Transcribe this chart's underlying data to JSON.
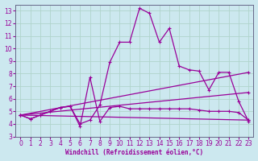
{
  "background_color": "#cce8ef",
  "line_color": "#990099",
  "grid_color": "#b0d4cc",
  "xlabel": "Windchill (Refroidissement éolien,°C)",
  "xlim": [
    -0.5,
    23.5
  ],
  "ylim": [
    3,
    13.5
  ],
  "xticks": [
    0,
    1,
    2,
    3,
    4,
    5,
    6,
    7,
    8,
    9,
    10,
    11,
    12,
    13,
    14,
    15,
    16,
    17,
    18,
    19,
    20,
    21,
    22,
    23
  ],
  "yticks": [
    3,
    4,
    5,
    6,
    7,
    8,
    9,
    10,
    11,
    12,
    13
  ],
  "series": [
    {
      "x": [
        0,
        1,
        2,
        3,
        4,
        5,
        6,
        7,
        8,
        9,
        10,
        11,
        12,
        13,
        14,
        15,
        16,
        17,
        18,
        19,
        20,
        21,
        22,
        23
      ],
      "y": [
        4.7,
        4.4,
        4.7,
        5.0,
        5.3,
        5.4,
        4.0,
        4.3,
        5.5,
        8.9,
        10.5,
        10.5,
        13.2,
        12.8,
        10.5,
        11.6,
        8.6,
        8.3,
        8.2,
        6.7,
        8.1,
        8.1,
        5.8,
        4.2
      ]
    },
    {
      "x": [
        0,
        1,
        2,
        3,
        4,
        5,
        6,
        7,
        8,
        9,
        10,
        11,
        12,
        13,
        14,
        15,
        16,
        17,
        18,
        19,
        20,
        21,
        22,
        23
      ],
      "y": [
        4.7,
        4.4,
        4.7,
        5.0,
        5.3,
        5.4,
        3.8,
        7.7,
        4.2,
        5.3,
        5.4,
        5.2,
        5.2,
        5.2,
        5.2,
        5.2,
        5.2,
        5.2,
        5.1,
        5.0,
        5.0,
        5.0,
        4.9,
        4.3
      ]
    },
    {
      "x": [
        0,
        23
      ],
      "y": [
        4.7,
        8.1
      ]
    },
    {
      "x": [
        0,
        23
      ],
      "y": [
        4.7,
        6.5
      ]
    },
    {
      "x": [
        0,
        23
      ],
      "y": [
        4.7,
        4.3
      ]
    }
  ]
}
